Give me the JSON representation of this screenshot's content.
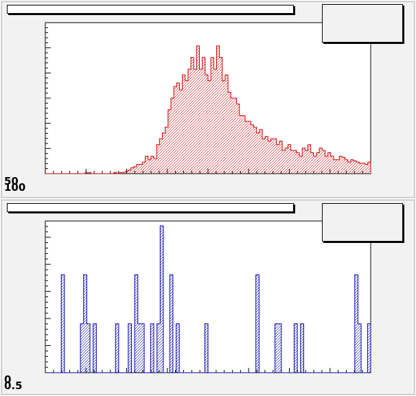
{
  "canvas": {
    "background": "#f2f2f2"
  },
  "top_panel": {
    "title": "",
    "stats": [],
    "y_tick_labels": [
      "50",
      "100"
    ]
  },
  "bottom_panel": {
    "title": "",
    "stats": [],
    "y_tick_labels": [
      "0",
      "0.5"
    ]
  },
  "chart_data": [
    {
      "type": "bar",
      "style": "step-histogram",
      "color": "#cc0000",
      "fill": "hatched",
      "ylim": [
        0,
        130
      ],
      "values": [
        0,
        0,
        0,
        0,
        0,
        0,
        0,
        0,
        0,
        0,
        0,
        0,
        0,
        0,
        1,
        1,
        0,
        0,
        0,
        0,
        0,
        0,
        0,
        0,
        1,
        0,
        1,
        1,
        2,
        3,
        5,
        6,
        8,
        8,
        10,
        15,
        12,
        15,
        13,
        25,
        30,
        35,
        40,
        55,
        65,
        75,
        78,
        72,
        85,
        80,
        90,
        100,
        90,
        110,
        90,
        100,
        85,
        80,
        100,
        90,
        110,
        100,
        80,
        85,
        70,
        65,
        65,
        60,
        50,
        50,
        45,
        45,
        42,
        40,
        35,
        38,
        30,
        32,
        28,
        30,
        30,
        25,
        28,
        20,
        22,
        25,
        20,
        20,
        18,
        15,
        22,
        20,
        25,
        18,
        15,
        18,
        22,
        20,
        15,
        18,
        15,
        12,
        12,
        15,
        14,
        12,
        10,
        12,
        11,
        10,
        9,
        9,
        8,
        10
      ]
    },
    {
      "type": "bar",
      "style": "step-histogram",
      "color": "#0000aa",
      "fill": "hatched",
      "ylim": [
        0,
        6.2
      ],
      "values": [
        0,
        0,
        0,
        0,
        0,
        4,
        0,
        0,
        0,
        0,
        0,
        2,
        4,
        2,
        0,
        2,
        0,
        0,
        0,
        0,
        0,
        0,
        2,
        0,
        0,
        0,
        2,
        0,
        4,
        2,
        2,
        0,
        0,
        2,
        0,
        2,
        6,
        0,
        0,
        4,
        0,
        2,
        0,
        0,
        0,
        0,
        0,
        0,
        0,
        0,
        2,
        0,
        0,
        0,
        0,
        0,
        0,
        0,
        0,
        0,
        0,
        0,
        0,
        0,
        0,
        0,
        4,
        0,
        0,
        0,
        0,
        0,
        2,
        2,
        0,
        0,
        0,
        0,
        2,
        0,
        2,
        0,
        0,
        0,
        0,
        0,
        0,
        0,
        0,
        0,
        0,
        0,
        0,
        0,
        0,
        0,
        0,
        4,
        2,
        0,
        0,
        2
      ]
    }
  ]
}
